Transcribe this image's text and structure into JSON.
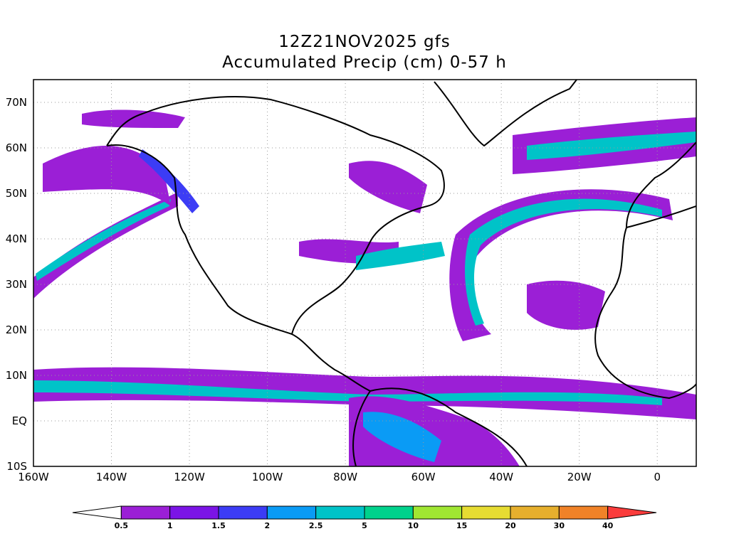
{
  "title": {
    "line1": "12Z21NOV2025 gfs",
    "line2": "Accumulated Precip (cm) 0-57 h"
  },
  "map": {
    "projection": "latlon",
    "lon_range": [
      -160,
      10
    ],
    "lat_range": [
      -10,
      75
    ],
    "grid_lines": "dotted",
    "lat_ticks": [
      {
        "lat": 70,
        "label": "70N"
      },
      {
        "lat": 60,
        "label": "60N"
      },
      {
        "lat": 50,
        "label": "50N"
      },
      {
        "lat": 40,
        "label": "40N"
      },
      {
        "lat": 30,
        "label": "30N"
      },
      {
        "lat": 20,
        "label": "20N"
      },
      {
        "lat": 10,
        "label": "10N"
      },
      {
        "lat": 0,
        "label": "EQ"
      },
      {
        "lat": -10,
        "label": "10S"
      }
    ],
    "lon_ticks": [
      {
        "lon": -160,
        "label": "160W"
      },
      {
        "lon": -140,
        "label": "140W"
      },
      {
        "lon": -120,
        "label": "120W"
      },
      {
        "lon": -100,
        "label": "100W"
      },
      {
        "lon": -80,
        "label": "80W"
      },
      {
        "lon": -60,
        "label": "60W"
      },
      {
        "lon": -40,
        "label": "40W"
      },
      {
        "lon": -20,
        "label": "20W"
      },
      {
        "lon": 0,
        "label": "0"
      }
    ]
  },
  "colorbar": {
    "levels": [
      "0.5",
      "1",
      "1.5",
      "2",
      "2.5",
      "5",
      "10",
      "15",
      "20",
      "30",
      "40"
    ],
    "colors": [
      "#ffffff",
      "#9b1fd6",
      "#7b14e6",
      "#3c3cf5",
      "#0a9bf5",
      "#00c3c8",
      "#00d28c",
      "#a0e632",
      "#e6dc32",
      "#e6af2d",
      "#f08228",
      "#fa3c3c"
    ]
  }
}
